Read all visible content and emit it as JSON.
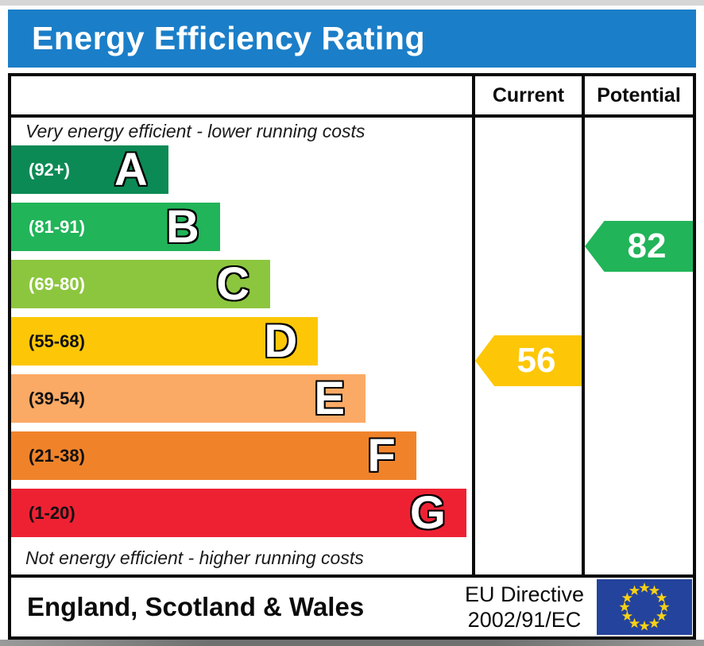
{
  "title": "Energy Efficiency Rating",
  "table": {
    "columns": [
      {
        "label": "Current"
      },
      {
        "label": "Potential"
      }
    ],
    "top_note": "Very energy efficient - lower running costs",
    "bottom_note": "Not energy efficient - higher running costs"
  },
  "chart_data": {
    "type": "bar",
    "title": "Energy Efficiency Rating",
    "bands": [
      {
        "letter": "A",
        "range": "(92+)",
        "color": "#0c8a55",
        "range_text_color": "#ffffff",
        "width_pct": 34.1
      },
      {
        "letter": "B",
        "range": "(81-91)",
        "color": "#21b459",
        "range_text_color": "#ffffff",
        "width_pct": 45.3
      },
      {
        "letter": "C",
        "range": "(69-80)",
        "color": "#8cc63e",
        "range_text_color": "#ffffff",
        "width_pct": 56.2
      },
      {
        "letter": "D",
        "range": "(55-68)",
        "color": "#fdc708",
        "range_text_color": "#111111",
        "width_pct": 66.6
      },
      {
        "letter": "E",
        "range": "(39-54)",
        "color": "#fbaa65",
        "range_text_color": "#111111",
        "width_pct": 76.9
      },
      {
        "letter": "F",
        "range": "(21-38)",
        "color": "#f0832a",
        "range_text_color": "#111111",
        "width_pct": 87.9
      },
      {
        "letter": "G",
        "range": "(1-20)",
        "color": "#ee2133",
        "range_text_color": "#111111",
        "width_pct": 98.8
      }
    ],
    "markers": {
      "current": {
        "value": 56,
        "band_index": 3,
        "color": "#fdc708"
      },
      "potential": {
        "value": 82,
        "band_index": 1,
        "color": "#21b459"
      }
    }
  },
  "footer": {
    "region": "England, Scotland & Wales",
    "directive": [
      "EU Directive",
      "2002/91/EC"
    ],
    "flag": {
      "background": "#24439c",
      "star_color": "#f7d117"
    }
  },
  "colors": {
    "header_bg": "#1b7ec8",
    "header_text": "#ffffff",
    "border": "#0b0b0b"
  }
}
